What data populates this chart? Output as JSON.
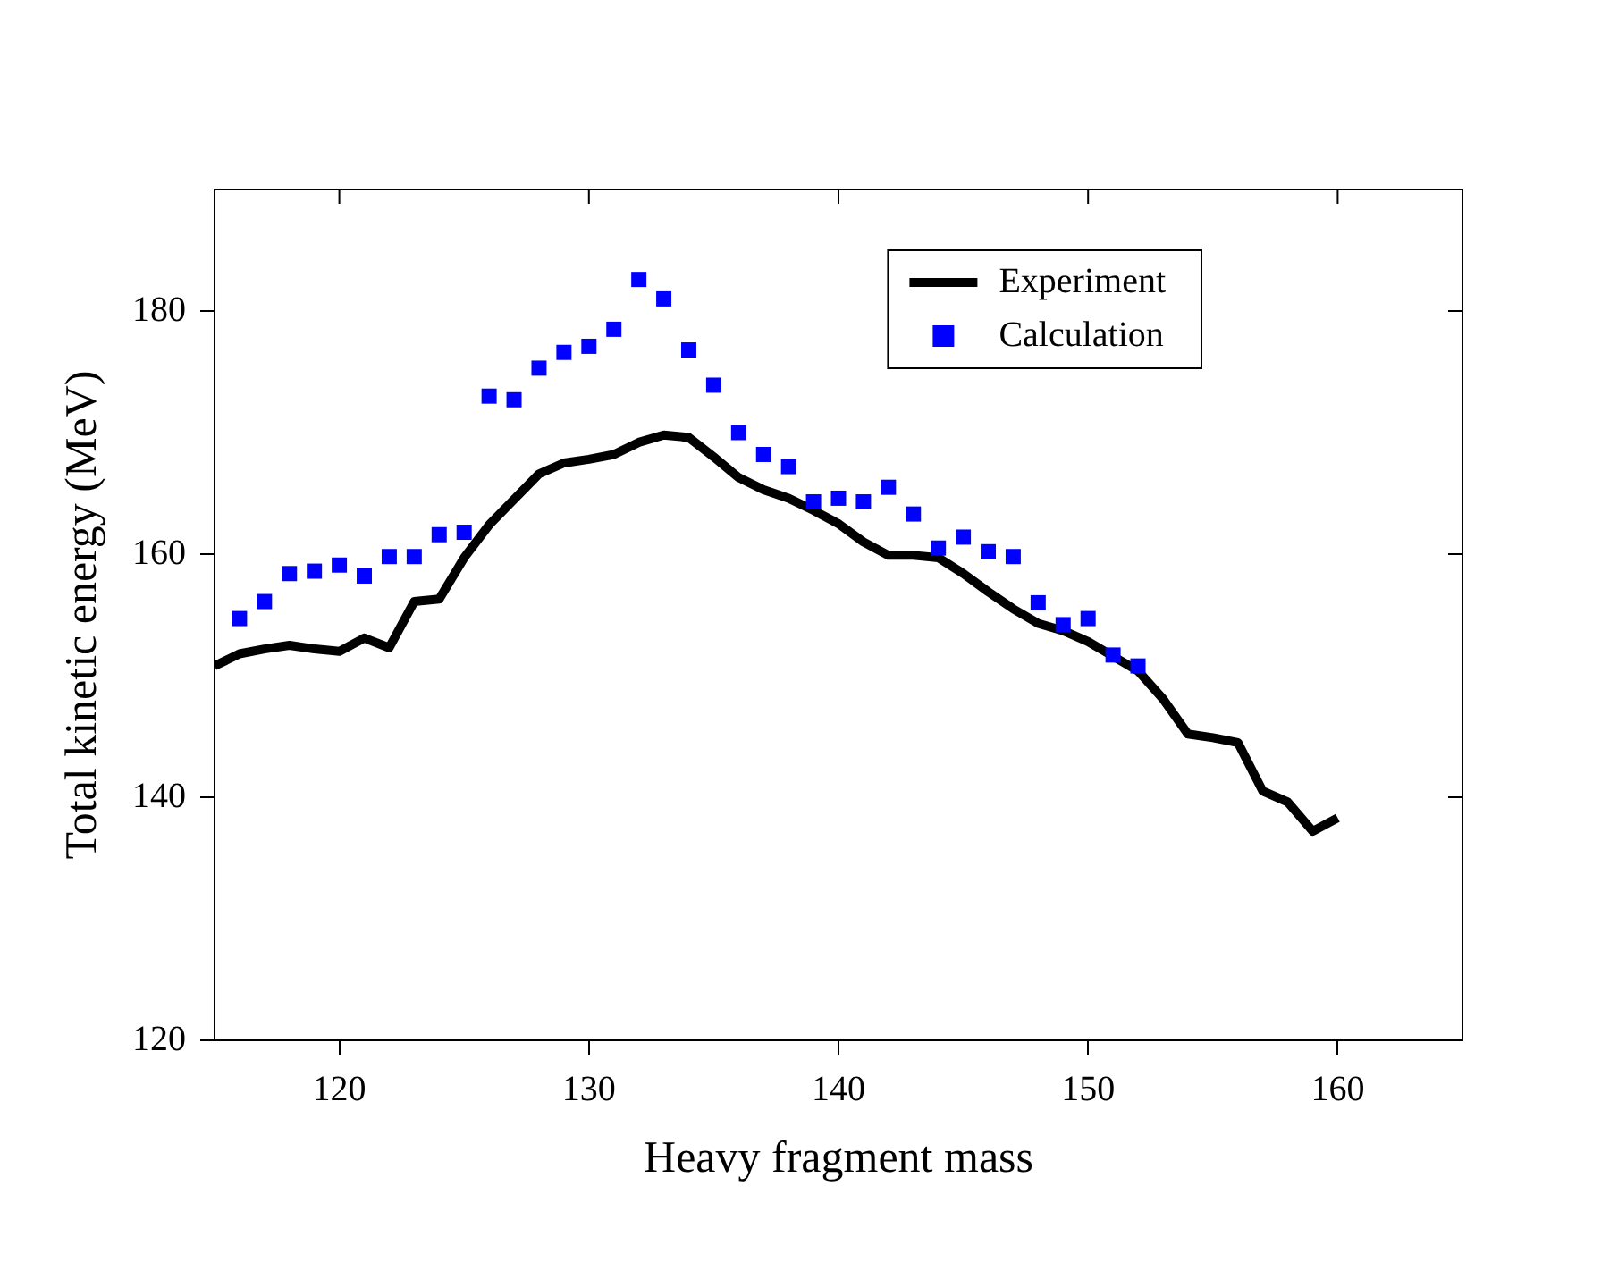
{
  "chart_data": {
    "type": "line",
    "xlabel": "Heavy fragment mass",
    "ylabel": "Total kinetic energy (MeV)",
    "xlim": [
      115,
      165
    ],
    "xticks": [
      120,
      130,
      140,
      150,
      160
    ],
    "ylim": [
      120,
      190
    ],
    "yticks": [
      120,
      140,
      160,
      180
    ],
    "grid": false,
    "legend": "top right",
    "x": [
      115,
      116,
      117,
      118,
      119,
      120,
      121,
      122,
      123,
      124,
      125,
      126,
      127,
      128,
      129,
      130,
      131,
      132,
      133,
      134,
      135,
      136,
      137,
      138,
      139,
      140,
      141,
      142,
      143,
      144,
      145,
      146,
      147,
      148,
      149,
      150,
      151,
      152,
      153,
      154,
      155,
      156,
      157,
      158,
      159,
      160
    ],
    "series": [
      {
        "name": "Experiment",
        "color": "#000000",
        "marker": "none",
        "line_style": "solid",
        "values": [
          150.8,
          151.8,
          152.2,
          152.5,
          152.2,
          152.0,
          153.1,
          152.3,
          156.1,
          156.3,
          159.7,
          162.4,
          164.5,
          166.6,
          167.5,
          167.8,
          168.2,
          169.2,
          169.8,
          169.6,
          168.0,
          166.3,
          165.3,
          164.6,
          163.6,
          162.5,
          161.0,
          159.9,
          159.9,
          159.7,
          158.4,
          156.9,
          155.5,
          154.3,
          153.7,
          152.8,
          151.6,
          150.4,
          148.1,
          145.2,
          144.9,
          144.5,
          140.5,
          139.6,
          137.2,
          138.3
        ]
      },
      {
        "name": "Calculation",
        "type": "scatter",
        "color": "#0000ff",
        "marker": "square",
        "x": [
          116,
          117,
          118,
          119,
          120,
          121,
          122,
          123,
          124,
          125,
          126,
          127,
          128,
          129,
          130,
          131,
          132,
          133,
          134,
          135,
          136,
          137,
          138,
          139,
          140,
          141,
          142,
          143,
          144,
          145,
          146,
          147,
          148,
          149,
          150,
          151,
          152
        ],
        "values": [
          154.7,
          156.1,
          158.4,
          158.6,
          159.1,
          158.2,
          159.8,
          159.8,
          161.6,
          161.8,
          173.0,
          172.7,
          175.3,
          176.6,
          177.1,
          178.5,
          182.6,
          181.0,
          176.8,
          173.9,
          170.0,
          168.2,
          167.2,
          164.3,
          164.6,
          164.3,
          165.5,
          163.3,
          160.5,
          161.4,
          160.2,
          159.8,
          156.0,
          154.2,
          154.7,
          151.7,
          150.8
        ]
      }
    ]
  }
}
